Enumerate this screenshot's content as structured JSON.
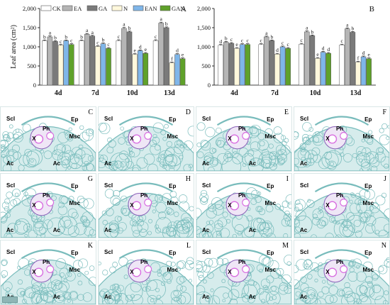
{
  "chart_data": [
    {
      "type": "bar",
      "panel_label": "A",
      "ylabel": "Leaf area (cm²)",
      "ylim": [
        0,
        2000
      ],
      "yticks": [
        "0",
        "500",
        "1,000",
        "1,500",
        "2,000"
      ],
      "legend_placement": "top",
      "grid": false,
      "categories": [
        "4d",
        "7d",
        "10d",
        "13d"
      ],
      "series": [
        {
          "name": "CK",
          "color": "#ffffff",
          "values": [
            1160,
            1160,
            1160,
            1160
          ],
          "errors": [
            20,
            20,
            25,
            25
          ],
          "labels": [
            "b",
            "b",
            "c",
            "c"
          ]
        },
        {
          "name": "EA",
          "color": "#b5b5b5",
          "values": [
            1260,
            1330,
            1480,
            1620
          ],
          "errors": [
            25,
            20,
            25,
            25
          ],
          "labels": [
            "a",
            "a",
            "a",
            "a"
          ]
        },
        {
          "name": "GA",
          "color": "#7a7a7a",
          "values": [
            1140,
            1280,
            1390,
            1500
          ],
          "errors": [
            20,
            20,
            20,
            20
          ],
          "labels": [
            "b",
            "a",
            "b",
            "b"
          ]
        },
        {
          "name": "N",
          "color": "#fff8dc",
          "values": [
            1040,
            1010,
            800,
            580
          ],
          "errors": [
            20,
            20,
            20,
            20
          ],
          "labels": [
            "c",
            "c",
            "e",
            "f"
          ]
        },
        {
          "name": "EAN",
          "color": "#7fb6e9",
          "values": [
            1160,
            1080,
            900,
            800
          ],
          "errors": [
            20,
            20,
            20,
            20
          ],
          "labels": [
            "b",
            "b",
            "d",
            "d"
          ]
        },
        {
          "name": "GAN",
          "color": "#5fa12a",
          "values": [
            1060,
            960,
            830,
            690
          ],
          "errors": [
            20,
            20,
            20,
            20
          ],
          "labels": [
            "c",
            "c",
            "e",
            "e"
          ]
        }
      ]
    },
    {
      "type": "bar",
      "panel_label": "B",
      "ylim": [
        0,
        2000
      ],
      "yticks": [
        "0",
        "500",
        "1,000",
        "1,500",
        "2,000"
      ],
      "grid": false,
      "categories": [
        "4d",
        "7d",
        "10d",
        "13d"
      ],
      "series": [
        {
          "name": "CK",
          "color": "#ffffff",
          "values": [
            1040,
            1060,
            1070,
            1050
          ],
          "errors": [
            20,
            20,
            20,
            20
          ],
          "labels": [
            "d",
            "c",
            "c",
            "c"
          ]
        },
        {
          "name": "EA",
          "color": "#b5b5b5",
          "values": [
            1120,
            1260,
            1390,
            1470
          ],
          "errors": [
            20,
            20,
            25,
            25
          ],
          "labels": [
            "b",
            "a",
            "a",
            "a"
          ]
        },
        {
          "name": "GA",
          "color": "#7a7a7a",
          "values": [
            1090,
            1160,
            1290,
            1380
          ],
          "errors": [
            20,
            20,
            20,
            20
          ],
          "labels": [
            "c",
            "b",
            "b",
            "b"
          ]
        },
        {
          "name": "N",
          "color": "#fff8dc",
          "values": [
            960,
            810,
            700,
            600
          ],
          "errors": [
            20,
            20,
            20,
            20
          ],
          "labels": [
            "e",
            "d",
            "e",
            "f"
          ]
        },
        {
          "name": "EAN",
          "color": "#7fb6e9",
          "values": [
            1060,
            1000,
            860,
            740
          ],
          "errors": [
            20,
            20,
            20,
            20
          ],
          "labels": [
            "c",
            "c",
            "d",
            "d"
          ]
        },
        {
          "name": "GAN",
          "color": "#5fa12a",
          "values": [
            1060,
            960,
            830,
            690
          ],
          "errors": [
            20,
            20,
            20,
            20
          ],
          "labels": [
            "c",
            "c",
            "d",
            "e"
          ]
        }
      ]
    }
  ],
  "micrographs": {
    "panel_labels": [
      "C",
      "D",
      "E",
      "F",
      "G",
      "H",
      "I",
      "J",
      "K",
      "L",
      "M",
      "N"
    ],
    "tissue_labels": {
      "scl": "Scl",
      "ep": "Ep",
      "ph": "Ph",
      "x": "X",
      "msc": "Msc",
      "ac": "Ac"
    },
    "colors": {
      "ground": "#79bcbc",
      "background": "#ffffff",
      "phloem": "#8a5fb8",
      "xylem": "#d86ee0"
    }
  }
}
